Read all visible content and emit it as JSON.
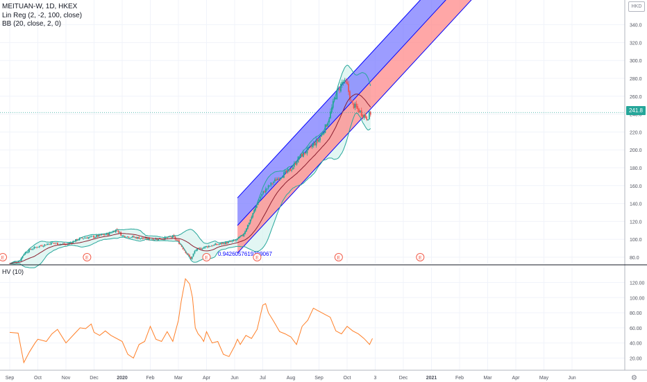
{
  "legend": {
    "symbol": "MEITUAN-W, 1D, HKEX",
    "linreg": "Lin Reg (2, -2, 100, close)",
    "bb": "BB (20, close, 2, 0)",
    "hv": "HV (10)"
  },
  "currency": "HKD",
  "last_price": "241.8",
  "regression_label": "0.9426057619389067",
  "earnings_marker": "E",
  "colors": {
    "bull": "#26a69a",
    "bear": "#ef5350",
    "bb_basis": "#8b1d2e",
    "bb_bands": "#26a69a",
    "bb_fill": "#d6f2ee",
    "linreg_upper_fill": "#7b7bff",
    "linreg_lower_fill": "#ff8a8a",
    "linreg_line": "#0000ff",
    "hv_line": "#ff7f27",
    "earnings": "#f25c4a"
  },
  "chart_data": [
    {
      "type": "candlestick",
      "title": "MEITUAN-W, 1D, HKEX",
      "xlabel": "",
      "ylabel": "",
      "x_ticks": [
        "Sep",
        "Oct",
        "Nov",
        "Dec",
        "2020",
        "Feb",
        "Mar",
        "Apr",
        "Jun",
        "Jul",
        "Aug",
        "Sep",
        "Oct",
        "3",
        "Dec",
        "2021",
        "Feb",
        "Mar",
        "Apr",
        "May",
        "Jun"
      ],
      "y_ticks": [
        80.0,
        100.0,
        120.0,
        140.0,
        160.0,
        180.0,
        200.0,
        220.0,
        240.0,
        260.0,
        280.0,
        300.0,
        320.0,
        340.0
      ],
      "ylim": [
        72,
        355
      ],
      "close_path": [
        {
          "t": 0.0,
          "close": 73
        },
        {
          "t": 0.35,
          "close": 76
        },
        {
          "t": 0.5,
          "close": 84
        },
        {
          "t": 0.75,
          "close": 89
        },
        {
          "t": 1.0,
          "close": 92
        },
        {
          "t": 1.5,
          "close": 96
        },
        {
          "t": 2.0,
          "close": 94
        },
        {
          "t": 2.5,
          "close": 101
        },
        {
          "t": 3.0,
          "close": 103
        },
        {
          "t": 3.5,
          "close": 106
        },
        {
          "t": 3.8,
          "close": 111
        },
        {
          "t": 4.0,
          "close": 104
        },
        {
          "t": 4.5,
          "close": 102
        },
        {
          "t": 5.0,
          "close": 100
        },
        {
          "t": 5.5,
          "close": 101
        },
        {
          "t": 5.8,
          "close": 103
        },
        {
          "t": 6.0,
          "close": 97
        },
        {
          "t": 6.3,
          "close": 84
        },
        {
          "t": 6.45,
          "close": 78
        },
        {
          "t": 6.6,
          "close": 88
        },
        {
          "t": 7.0,
          "close": 92
        },
        {
          "t": 7.5,
          "close": 95
        },
        {
          "t": 8.0,
          "close": 98
        },
        {
          "t": 8.3,
          "close": 105
        },
        {
          "t": 8.6,
          "close": 125
        },
        {
          "t": 8.8,
          "close": 140
        },
        {
          "t": 9.0,
          "close": 152
        },
        {
          "t": 9.3,
          "close": 162
        },
        {
          "t": 9.6,
          "close": 170
        },
        {
          "t": 10.0,
          "close": 178
        },
        {
          "t": 10.3,
          "close": 192
        },
        {
          "t": 10.6,
          "close": 200
        },
        {
          "t": 11.0,
          "close": 212
        },
        {
          "t": 11.3,
          "close": 230
        },
        {
          "t": 11.6,
          "close": 262
        },
        {
          "t": 11.85,
          "close": 277
        },
        {
          "t": 12.0,
          "close": 272
        },
        {
          "t": 12.15,
          "close": 252
        },
        {
          "t": 12.35,
          "close": 246
        },
        {
          "t": 12.55,
          "close": 240
        },
        {
          "t": 12.7,
          "close": 236
        },
        {
          "t": 12.85,
          "close": 241.8
        }
      ],
      "series": [
        {
          "name": "Lin Reg (2, -2, 100, close)",
          "type": "regression_channel",
          "start_t": 8.1,
          "end_t": 17.0,
          "correlation": "0.9426057619389067"
        },
        {
          "name": "BB (20, close, 2, 0)",
          "type": "bollinger_bands",
          "length": 20,
          "mult": 2
        }
      ],
      "earnings_markers_t": [
        0.0,
        2.75,
        7.0,
        8.8,
        11.7,
        14.6
      ],
      "last_price": 241.8,
      "grid": true
    },
    {
      "type": "line",
      "title": "HV (10)",
      "y_ticks": [
        20.0,
        40.0,
        60.0,
        80.0,
        100.0,
        120.0
      ],
      "ylim": [
        8,
        135
      ],
      "x": [
        0.0,
        0.3,
        0.5,
        0.7,
        0.9,
        1.0,
        1.3,
        1.5,
        1.7,
        2.0,
        2.3,
        2.5,
        2.7,
        2.9,
        3.0,
        3.2,
        3.4,
        3.6,
        4.0,
        4.2,
        4.4,
        4.6,
        4.8,
        5.0,
        5.2,
        5.4,
        5.6,
        5.8,
        6.0,
        6.1,
        6.25,
        6.4,
        6.5,
        6.6,
        6.7,
        6.8,
        6.9,
        7.0,
        7.2,
        7.4,
        7.6,
        7.8,
        8.0,
        8.1,
        8.2,
        8.4,
        8.6,
        8.8,
        9.0,
        9.1,
        9.2,
        9.4,
        9.6,
        9.8,
        10.0,
        10.2,
        10.4,
        10.6,
        10.8,
        11.0,
        11.2,
        11.4,
        11.6,
        11.8,
        12.0,
        12.2,
        12.4,
        12.6,
        12.8,
        12.9
      ],
      "values": [
        54,
        53,
        14,
        28,
        40,
        45,
        42,
        52,
        58,
        40,
        52,
        60,
        59,
        65,
        54,
        50,
        56,
        50,
        42,
        25,
        20,
        38,
        42,
        62,
        45,
        42,
        55,
        42,
        70,
        95,
        125,
        118,
        100,
        60,
        52,
        48,
        42,
        55,
        40,
        42,
        25,
        22,
        36,
        45,
        38,
        50,
        46,
        58,
        90,
        92,
        80,
        68,
        55,
        52,
        48,
        38,
        62,
        70,
        86,
        82,
        78,
        74,
        56,
        52,
        62,
        56,
        52,
        46,
        38,
        46
      ]
    }
  ]
}
